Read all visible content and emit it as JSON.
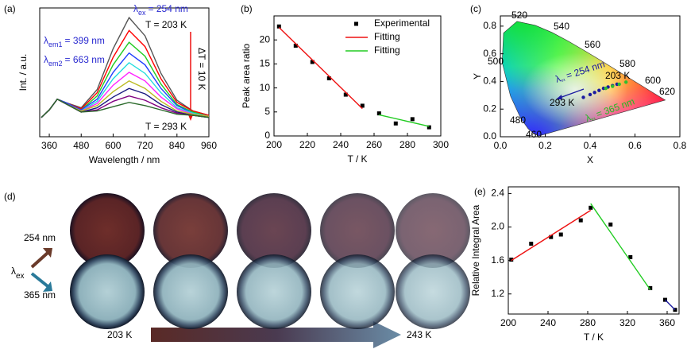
{
  "chart_data": [
    {
      "type": "line",
      "panel": "(a)",
      "xlabel": "Wavelength / nm",
      "ylabel": "Int. / a.u.",
      "x": [
        330,
        360,
        390,
        420,
        480,
        540,
        600,
        660,
        720,
        780,
        840,
        900,
        960
      ],
      "xlim": [
        324,
        960
      ],
      "xticks": [
        360,
        480,
        600,
        720,
        840,
        960
      ],
      "ylim": [
        -0.15,
        1.05
      ],
      "series": [
        {
          "color": "#555555",
          "values": [
            0.03,
            0.1,
            0.2,
            0.17,
            0.12,
            0.29,
            0.67,
            0.96,
            0.79,
            0.44,
            0.19,
            0.09,
            0.05
          ]
        },
        {
          "color": "#ff0000",
          "values": [
            0.03,
            0.1,
            0.2,
            0.17,
            0.11,
            0.26,
            0.59,
            0.84,
            0.69,
            0.39,
            0.17,
            0.09,
            0.05
          ]
        },
        {
          "color": "#22cc22",
          "values": [
            0.03,
            0.1,
            0.2,
            0.17,
            0.1,
            0.23,
            0.52,
            0.73,
            0.6,
            0.34,
            0.15,
            0.08,
            0.04
          ]
        },
        {
          "color": "#1f3fff",
          "values": [
            0.03,
            0.1,
            0.2,
            0.17,
            0.1,
            0.2,
            0.45,
            0.63,
            0.52,
            0.3,
            0.14,
            0.07,
            0.04
          ]
        },
        {
          "color": "#22dddd",
          "values": [
            0.03,
            0.1,
            0.2,
            0.16,
            0.09,
            0.18,
            0.39,
            0.54,
            0.44,
            0.26,
            0.12,
            0.07,
            0.04
          ]
        },
        {
          "color": "#ff22ff",
          "values": [
            0.03,
            0.1,
            0.2,
            0.16,
            0.09,
            0.16,
            0.33,
            0.45,
            0.37,
            0.22,
            0.11,
            0.06,
            0.04
          ]
        },
        {
          "color": "#bbbb22",
          "values": [
            0.03,
            0.1,
            0.2,
            0.16,
            0.09,
            0.14,
            0.27,
            0.37,
            0.3,
            0.18,
            0.09,
            0.06,
            0.04
          ]
        },
        {
          "color": "#1a1a80",
          "values": [
            0.03,
            0.1,
            0.2,
            0.16,
            0.08,
            0.12,
            0.22,
            0.3,
            0.25,
            0.15,
            0.08,
            0.05,
            0.03
          ]
        },
        {
          "color": "#800080",
          "values": [
            0.03,
            0.1,
            0.2,
            0.16,
            0.08,
            0.1,
            0.18,
            0.23,
            0.19,
            0.12,
            0.07,
            0.05,
            0.03
          ]
        },
        {
          "color": "#2a6a2a",
          "values": [
            0.03,
            0.1,
            0.2,
            0.16,
            0.08,
            0.09,
            0.13,
            0.17,
            0.14,
            0.1,
            0.06,
            0.05,
            0.03
          ]
        }
      ],
      "annotations": [
        {
          "main": "λ",
          "sub": "em1",
          "tail": "= 399 nm",
          "color": "#2a2ad0"
        },
        {
          "main": "λ",
          "sub": "em2",
          "tail": "= 663 nm",
          "color": "#2a2ad0"
        },
        {
          "main": "λ",
          "sub": "ex",
          "tail": "= 254 nm",
          "color": "#2a2ad0"
        },
        {
          "text": "T = 203 K",
          "color": "#2a2ad0"
        },
        {
          "text": "ΔT = 10 K",
          "color": "#2a2ad0"
        },
        {
          "text": "T = 293 K",
          "color": "#2a2ad0"
        }
      ]
    },
    {
      "type": "scatter",
      "panel": "(b)",
      "xlabel": "T / K",
      "ylabel": "Peak area ratio",
      "xlim": [
        200,
        300
      ],
      "xticks": [
        200,
        220,
        240,
        260,
        280,
        300
      ],
      "ylim": [
        0,
        25
      ],
      "yticks": [
        0,
        5,
        10,
        15,
        20
      ],
      "series": [
        {
          "name": "Experimental",
          "style": "marker",
          "color": "#000000",
          "x": [
            203,
            213,
            223,
            233,
            243,
            253,
            263,
            273,
            283,
            293
          ],
          "values": [
            22.8,
            18.8,
            15.4,
            12,
            8.6,
            6.3,
            4.7,
            2.6,
            3.5,
            1.8
          ]
        },
        {
          "name": "Fitting",
          "style": "line",
          "color": "#ee1111",
          "x": [
            203,
            253
          ],
          "values": [
            22.6,
            5.7
          ]
        },
        {
          "name": "Fitting",
          "style": "line",
          "color": "#22cc22",
          "x": [
            263,
            293
          ],
          "values": [
            4.4,
            2
          ]
        }
      ]
    },
    {
      "type": "scatter",
      "panel": "(c)",
      "xlabel": "X",
      "ylabel": "Y",
      "xlim": [
        0,
        0.8
      ],
      "xticks": [
        {
          "value": 0,
          "label": "0.0"
        },
        0.2,
        0.4,
        0.6,
        0.8
      ],
      "ylim": [
        0,
        0.874
      ],
      "yticks": [
        {
          "value": 0,
          "label": "0.0"
        },
        0.2,
        0.4,
        0.6,
        0.8
      ],
      "locus_labels": [
        460,
        480,
        500,
        520,
        540,
        560,
        580,
        600,
        620
      ],
      "series": [
        {
          "style": "marker",
          "marker": "circle",
          "color": "#1a1aa0",
          "x": [
            0.37,
            0.4,
            0.42,
            0.44,
            0.46,
            0.48,
            0.5,
            0.52
          ],
          "values": [
            0.285,
            0.305,
            0.32,
            0.335,
            0.35,
            0.36,
            0.37,
            0.38
          ]
        },
        {
          "style": "marker",
          "marker": "circle",
          "color": "#2fbf2f",
          "x": [
            0.47,
            0.5,
            0.53,
            0.56
          ],
          "values": [
            0.35,
            0.365,
            0.38,
            0.395
          ]
        }
      ],
      "annotations": [
        {
          "main": "λ",
          "sub": "ex",
          "tail": "= 254 nm",
          "color": "#1a1aa0"
        },
        {
          "text": "203 K",
          "color": "#1a1aa0"
        },
        {
          "text": "293 K",
          "color": "#1a1aa0"
        },
        {
          "main": "λ",
          "sub": "ex",
          "tail": "= 365 nm",
          "color": "#22bb22"
        }
      ]
    },
    {
      "type": "scatter",
      "panel": "(e)",
      "xlabel": "T / K",
      "ylabel": "Relative Integral Area",
      "xlim": [
        200,
        372
      ],
      "xticks": [
        200,
        240,
        280,
        320,
        360
      ],
      "ylim": [
        0.96,
        2.48
      ],
      "yticks": [
        1.2,
        1.6,
        {
          "value": 2,
          "label": "2.0"
        },
        2.4
      ],
      "series": [
        {
          "style": "marker",
          "color": "#000000",
          "x": [
            203,
            223,
            243,
            253,
            273,
            283,
            303,
            323,
            343,
            358,
            368
          ],
          "values": [
            1.61,
            1.8,
            1.88,
            1.91,
            2.08,
            2.23,
            2.03,
            1.64,
            1.27,
            1.13,
            1.01
          ]
        },
        {
          "style": "line",
          "color": "#ee1111",
          "x": [
            203,
            283
          ],
          "values": [
            1.6,
            2.2
          ]
        },
        {
          "style": "line",
          "color": "#22cc22",
          "x": [
            283,
            343
          ],
          "values": [
            2.28,
            1.25
          ]
        },
        {
          "style": "line",
          "color": "#1a1aa0",
          "x": [
            358,
            368
          ],
          "values": [
            1.13,
            1.01
          ]
        }
      ]
    }
  ],
  "photo_panel": {
    "label": "(d)",
    "rows": [
      "254 nm",
      "365 nm"
    ],
    "excitation": {
      "main": "λ",
      "sub": "ex"
    },
    "range": [
      "203 K",
      "243 K"
    ]
  }
}
